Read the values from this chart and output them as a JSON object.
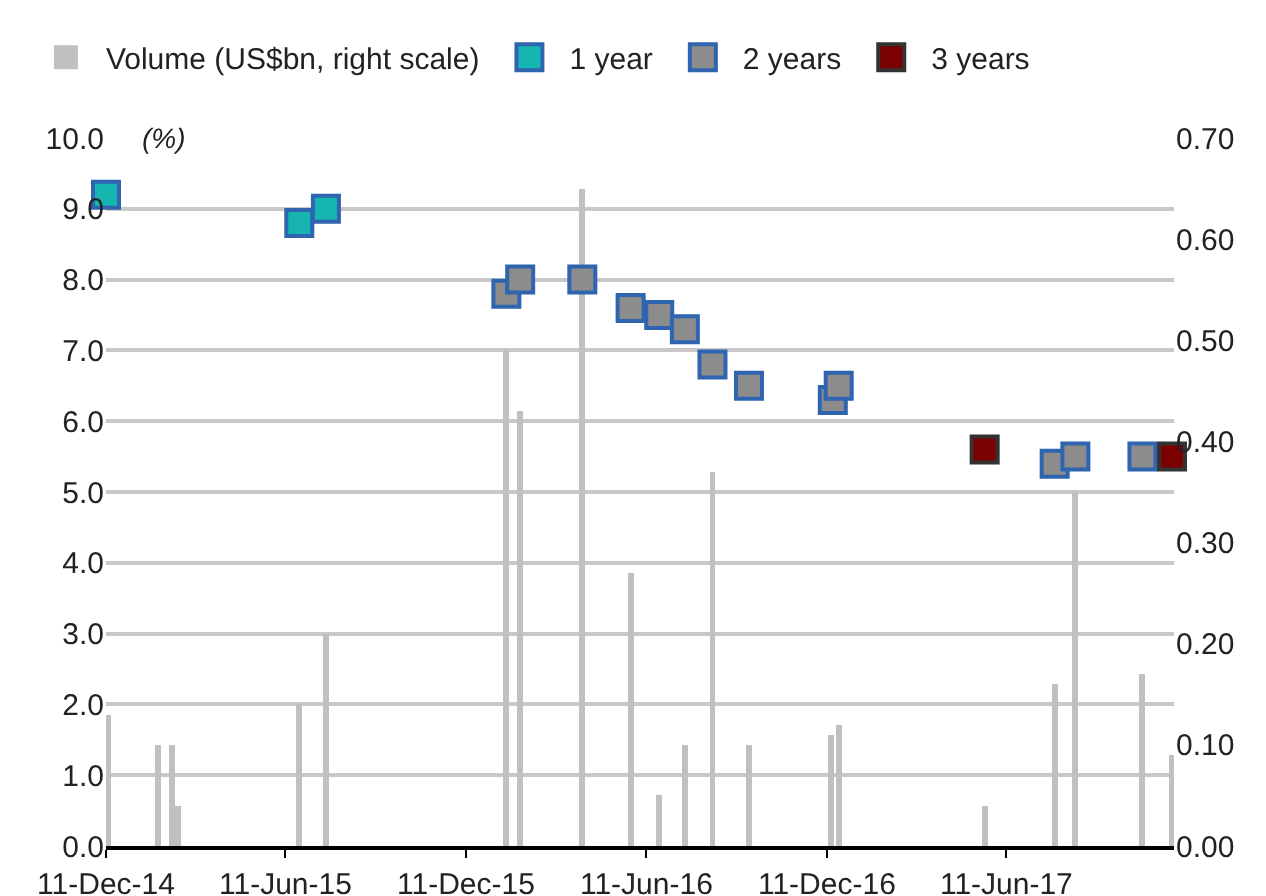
{
  "chart_data": {
    "type": "scatter",
    "annotations": [
      "(%)"
    ],
    "xlim": [
      "2014-12-11",
      "2017-11-28"
    ],
    "xticks": [
      {
        "value": "2014-12-11",
        "label": "11-Dec-14"
      },
      {
        "value": "2015-06-11",
        "label": "11-Jun-15"
      },
      {
        "value": "2015-12-11",
        "label": "11-Dec-15"
      },
      {
        "value": "2016-06-11",
        "label": "11-Jun-16"
      },
      {
        "value": "2016-12-11",
        "label": "11-Dec-16"
      },
      {
        "value": "2017-06-11",
        "label": "11-Jun-17"
      }
    ],
    "ylim": [
      0,
      10
    ],
    "yticks": [
      {
        "value": 0,
        "label": "0.0"
      },
      {
        "value": 1,
        "label": "1.0"
      },
      {
        "value": 2,
        "label": "2.0"
      },
      {
        "value": 3,
        "label": "3.0"
      },
      {
        "value": 4,
        "label": "4.0"
      },
      {
        "value": 5,
        "label": "5.0"
      },
      {
        "value": 6,
        "label": "6.0"
      },
      {
        "value": 7,
        "label": "7.0"
      },
      {
        "value": 8,
        "label": "8.0"
      },
      {
        "value": 9,
        "label": "9.0"
      },
      {
        "value": 10,
        "label": "10.0"
      }
    ],
    "y2lim": [
      0,
      0.7
    ],
    "y2ticks": [
      {
        "value": 0,
        "label": "0.00"
      },
      {
        "value": 0.1,
        "label": "0.10"
      },
      {
        "value": 0.2,
        "label": "0.20"
      },
      {
        "value": 0.3,
        "label": "0.30"
      },
      {
        "value": 0.4,
        "label": "0.40"
      },
      {
        "value": 0.5,
        "label": "0.50"
      },
      {
        "value": 0.6,
        "label": "0.60"
      },
      {
        "value": 0.7,
        "label": "0.70"
      }
    ],
    "grid": "y",
    "legend": "top",
    "marker": "square",
    "series": [
      {
        "name": "Volume (US$bn, right scale)",
        "type": "bar",
        "axis": "y2",
        "color": "#c0c0c0",
        "x": [
          "2014-12-13",
          "2015-02-02",
          "2015-02-16",
          "2015-02-22",
          "2015-06-25",
          "2015-07-22",
          "2016-01-21",
          "2016-02-04",
          "2016-04-07",
          "2016-05-26",
          "2016-06-24",
          "2016-07-20",
          "2016-08-17",
          "2016-09-23",
          "2016-12-15",
          "2016-12-23",
          "2017-05-20",
          "2017-07-30",
          "2017-08-20",
          "2017-10-27",
          "2017-11-26"
        ],
        "values": [
          0.13,
          0.1,
          0.1,
          0.04,
          0.14,
          0.21,
          0.49,
          0.43,
          0.65,
          0.27,
          0.05,
          0.1,
          0.37,
          0.1,
          0.11,
          0.12,
          0.04,
          0.16,
          0.35,
          0.17,
          0.09
        ]
      },
      {
        "name": "1 year",
        "color": "#17b5b0",
        "x": [
          "2014-12-11",
          "2015-06-25",
          "2015-07-22"
        ],
        "values": [
          9.2,
          8.8,
          9.0
        ]
      },
      {
        "name": "2 years",
        "color": "#8c8c8c",
        "x": [
          "2016-01-21",
          "2016-02-04",
          "2016-04-07",
          "2016-05-26",
          "2016-06-24",
          "2016-07-20",
          "2016-08-17",
          "2016-09-23",
          "2016-12-17",
          "2016-12-23",
          "2017-07-30",
          "2017-08-20",
          "2017-10-27"
        ],
        "values": [
          7.8,
          8.0,
          8.0,
          7.6,
          7.5,
          7.3,
          6.8,
          6.5,
          6.3,
          6.5,
          5.4,
          5.5,
          5.5
        ]
      },
      {
        "name": "3 years",
        "color": "#7b0000",
        "x": [
          "2017-05-20",
          "2017-11-26"
        ],
        "values": [
          5.6,
          5.5
        ]
      }
    ]
  }
}
